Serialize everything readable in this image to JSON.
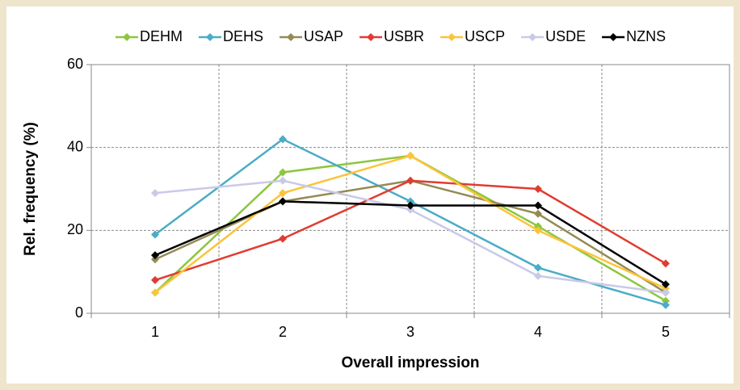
{
  "chart_data": {
    "type": "line",
    "x_label": "Overall impression",
    "y_label": "Rel. frequency (%)",
    "categories": [
      "1",
      "2",
      "3",
      "4",
      "5"
    ],
    "ylim": [
      0,
      60
    ],
    "yticks": [
      0,
      20,
      40,
      60
    ],
    "grid": true,
    "legend": "top",
    "series": [
      {
        "name": "DEHM",
        "color": "#8dc63f",
        "values": [
          5,
          34,
          38,
          21,
          3
        ]
      },
      {
        "name": "DEHS",
        "color": "#4bacc6",
        "values": [
          19,
          42,
          27,
          11,
          2
        ]
      },
      {
        "name": "USAP",
        "color": "#948a54",
        "values": [
          13,
          27,
          32,
          24,
          5
        ]
      },
      {
        "name": "USBR",
        "color": "#e03c31",
        "values": [
          8,
          18,
          32,
          30,
          12
        ]
      },
      {
        "name": "USCP",
        "color": "#fcc43a",
        "values": [
          5,
          29,
          38,
          20,
          6
        ]
      },
      {
        "name": "USDE",
        "color": "#c9c9e8",
        "values": [
          29,
          32,
          25,
          9,
          5
        ]
      },
      {
        "name": "NZNS",
        "color": "#000000",
        "values": [
          14,
          27,
          26,
          26,
          7
        ]
      }
    ]
  }
}
